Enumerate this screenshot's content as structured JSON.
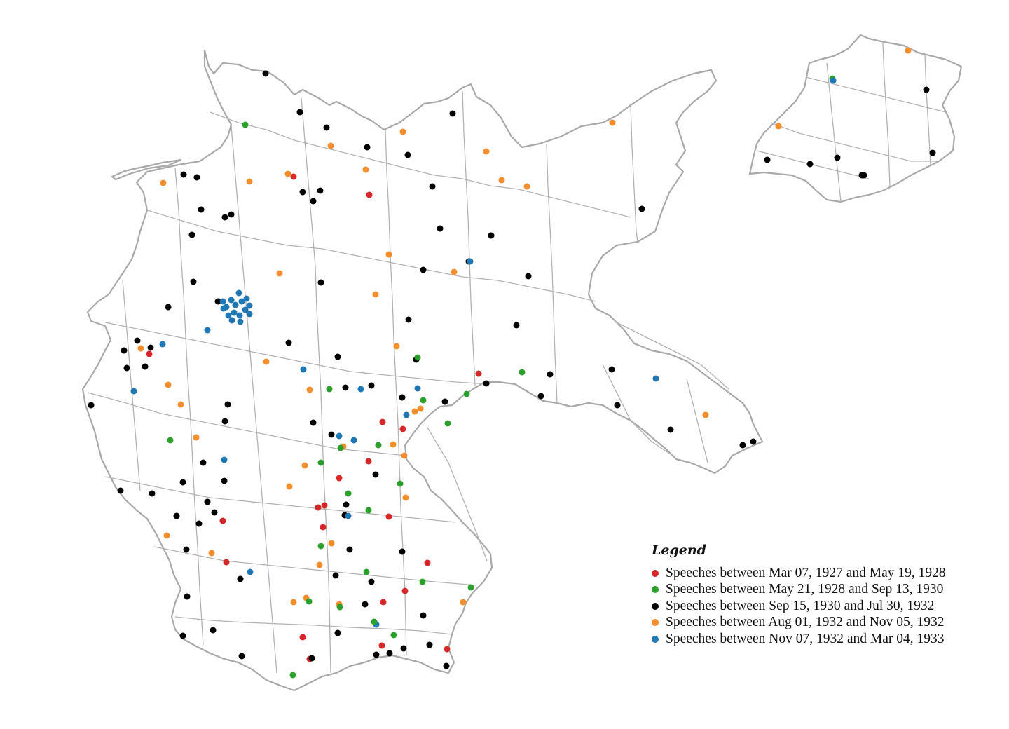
{
  "legend": {
    "title": "Legend",
    "items": [
      {
        "label": "Speeches between Mar 07, 1927 and May 19, 1928",
        "color": "#d62728"
      },
      {
        "label": "Speeches between May 21, 1928 and Sep 13, 1930",
        "color": "#2ca02c"
      },
      {
        "label": "Speeches between Sep 15, 1930 and Jul 30, 1932",
        "color": "#000000"
      },
      {
        "label": "Speeches between Aug 01, 1932 and Nov 05, 1932",
        "color": "#f28e2b"
      },
      {
        "label": "Speeches between Nov 07, 1932 and Mar 04, 1933",
        "color": "#1f77b4"
      }
    ]
  },
  "colors": {
    "boundary": "#a9a9a9",
    "background": "#ffffff"
  }
}
